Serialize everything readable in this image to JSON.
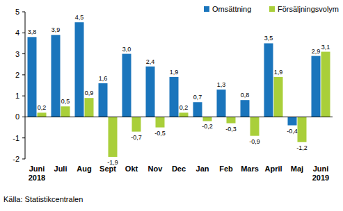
{
  "chart_data": {
    "type": "bar",
    "categories": [
      "Juni 2018",
      "Juli",
      "Aug",
      "Sept",
      "Okt",
      "Nov",
      "Dec",
      "Jan",
      "Feb",
      "Mars",
      "April",
      "Maj",
      "Juni 2019"
    ],
    "series": [
      {
        "name": "Omsättning",
        "color": "#1a75bc",
        "values": [
          3.8,
          3.9,
          4.5,
          1.6,
          3.0,
          2.4,
          1.9,
          0.7,
          1.3,
          0.8,
          3.5,
          -0.4,
          2.9
        ],
        "value_labels": [
          "3,8",
          "3,9",
          "4,5",
          "1,6",
          "3,0",
          "2,4",
          "1,9",
          "0,7",
          "1,3",
          "0,8",
          "3,5",
          "-0,4",
          "2,9"
        ]
      },
      {
        "name": "Försäljningsvolym",
        "color": "#a9cf3a",
        "values": [
          0.2,
          0.5,
          0.9,
          -1.9,
          -0.7,
          -0.5,
          0.2,
          -0.2,
          -0.3,
          -0.9,
          1.9,
          -1.2,
          3.1
        ],
        "value_labels": [
          "0,2",
          "0,5",
          "0,9",
          "-1,9",
          "-0,7",
          "-0,5",
          "0,2",
          "-0,2",
          "-0,3",
          "-0,9",
          "1,9",
          "-1,2",
          "3,1"
        ]
      }
    ],
    "ylim": [
      -2,
      5
    ],
    "yticks": [
      -2,
      -1,
      0,
      1,
      2,
      3,
      4,
      5
    ],
    "grid": false,
    "legend": "top-right",
    "data_labels": true,
    "annotations": [
      "Källa: Statistikcentralen"
    ]
  }
}
